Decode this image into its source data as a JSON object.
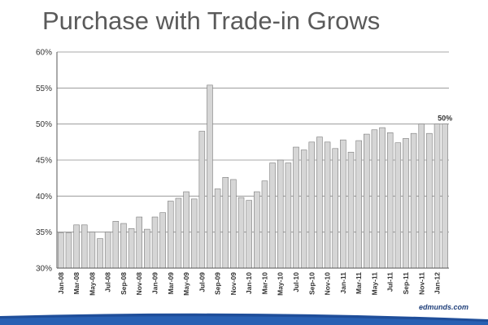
{
  "title": "Purchase with Trade-in Grows",
  "logo_text": "edmunds.com",
  "colors": {
    "bar_fill": "#d6d6d6",
    "bar_stroke": "#7a7a7a",
    "grid": "#8c8c8c",
    "footer": "#1f4e9a"
  },
  "chart_data": {
    "type": "bar",
    "title": "Purchase with Trade-in Grows",
    "xlabel": "",
    "ylabel": "",
    "ylim": [
      30,
      60
    ],
    "y_ticks": [
      "30%",
      "35%",
      "40%",
      "45%",
      "50%",
      "55%",
      "60%"
    ],
    "y_tick_values": [
      30,
      35,
      40,
      45,
      50,
      55,
      60
    ],
    "grid": true,
    "legend": "none",
    "categories": [
      "Jan-08",
      "Feb-08",
      "Mar-08",
      "Apr-08",
      "May-08",
      "Jun-08",
      "Jul-08",
      "Aug-08",
      "Sep-08",
      "Oct-08",
      "Nov-08",
      "Dec-08",
      "Jan-09",
      "Feb-09",
      "Mar-09",
      "Apr-09",
      "May-09",
      "Jun-09",
      "Jul-09",
      "Aug-09",
      "Sep-09",
      "Oct-09",
      "Nov-09",
      "Dec-09",
      "Jan-10",
      "Feb-10",
      "Mar-10",
      "Apr-10",
      "May-10",
      "Jun-10",
      "Jul-10",
      "Aug-10",
      "Sep-10",
      "Oct-10",
      "Nov-10",
      "Dec-10",
      "Jan-11",
      "Feb-11",
      "Mar-11",
      "Apr-11",
      "May-11",
      "Jun-11",
      "Jul-11",
      "Aug-11",
      "Sep-11",
      "Oct-11",
      "Nov-11",
      "Dec-11",
      "Jan-12",
      "Feb-12"
    ],
    "shown_tick_labels": [
      "Jan-08",
      "Mar-08",
      "May-08",
      "Jul-08",
      "Sep-08",
      "Nov-08",
      "Jan-09",
      "Mar-09",
      "May-09",
      "Jul-09",
      "Sep-09",
      "Nov-09",
      "Jan-10",
      "Mar-10",
      "May-10",
      "Jul-10",
      "Sep-10",
      "Nov-10",
      "Jan-11",
      "Mar-11",
      "May-11",
      "Jul-11",
      "Sep-11",
      "Nov-11",
      "Jan-12"
    ],
    "values": [
      34.9,
      34.9,
      36.0,
      36.0,
      35.0,
      34.1,
      35.0,
      36.5,
      36.2,
      35.5,
      37.1,
      35.4,
      37.1,
      37.7,
      39.3,
      39.7,
      40.6,
      39.6,
      49.0,
      55.4,
      41.0,
      42.6,
      42.3,
      39.8,
      39.4,
      40.6,
      42.1,
      44.6,
      45.0,
      44.6,
      46.8,
      46.4,
      47.5,
      48.2,
      47.5,
      46.6,
      47.8,
      46.1,
      47.7,
      48.6,
      49.2,
      49.5,
      48.8,
      47.4,
      48.0,
      48.7,
      50.0,
      48.7,
      50.0,
      50.0
    ],
    "annotation": {
      "text": "50%",
      "category": "Feb-12"
    }
  }
}
